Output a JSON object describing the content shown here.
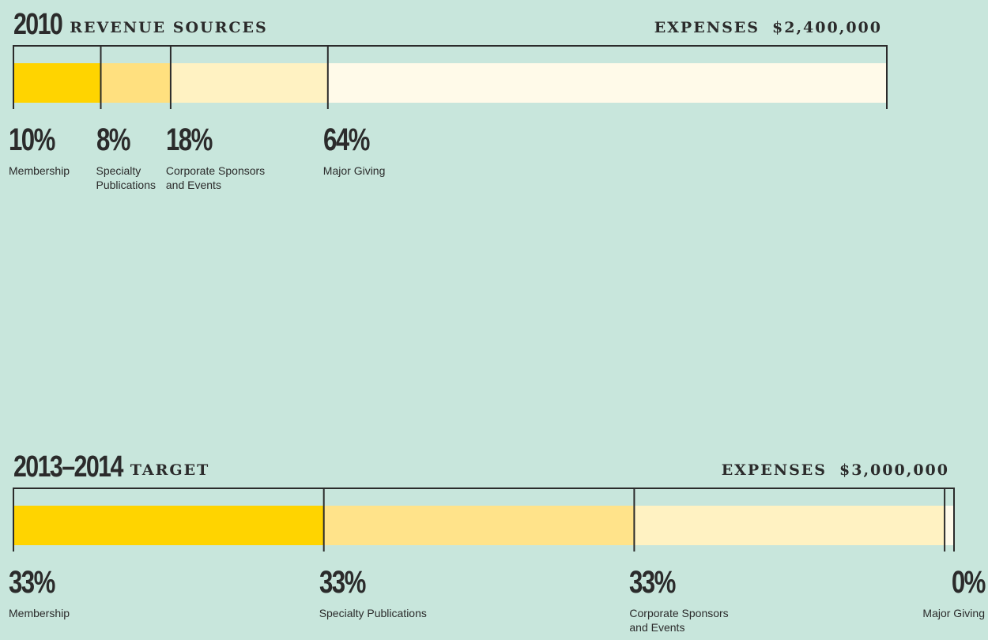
{
  "chart_data": [
    {
      "type": "stacked-bar",
      "title": "2010",
      "subtitle": "REVENUE SOURCES",
      "expenses_label": "EXPENSES",
      "expenses_value": "$2,400,000",
      "categories": [
        "Membership",
        "Specialty Publications",
        "Corporate Sponsors and Events",
        "Major Giving"
      ],
      "values": [
        10,
        8,
        18,
        64
      ],
      "value_labels": [
        "10%",
        "8%",
        "18%",
        "64%"
      ],
      "colors": [
        "#ffd400",
        "#ffe07f",
        "#fff2c2",
        "#fffae9"
      ]
    },
    {
      "type": "stacked-bar",
      "title": "2013–2014",
      "subtitle": "TARGET",
      "expenses_label": "EXPENSES",
      "expenses_value": "$3,000,000",
      "categories": [
        "Membership",
        "Specialty Publications",
        "Corporate Sponsors and Events",
        "Major Giving"
      ],
      "values": [
        33,
        33,
        33,
        0
      ],
      "value_labels": [
        "33%",
        "33%",
        "33%",
        "0%"
      ],
      "colors": [
        "#ffd400",
        "#ffe38a",
        "#fff2c2",
        "#fffae9"
      ]
    }
  ]
}
